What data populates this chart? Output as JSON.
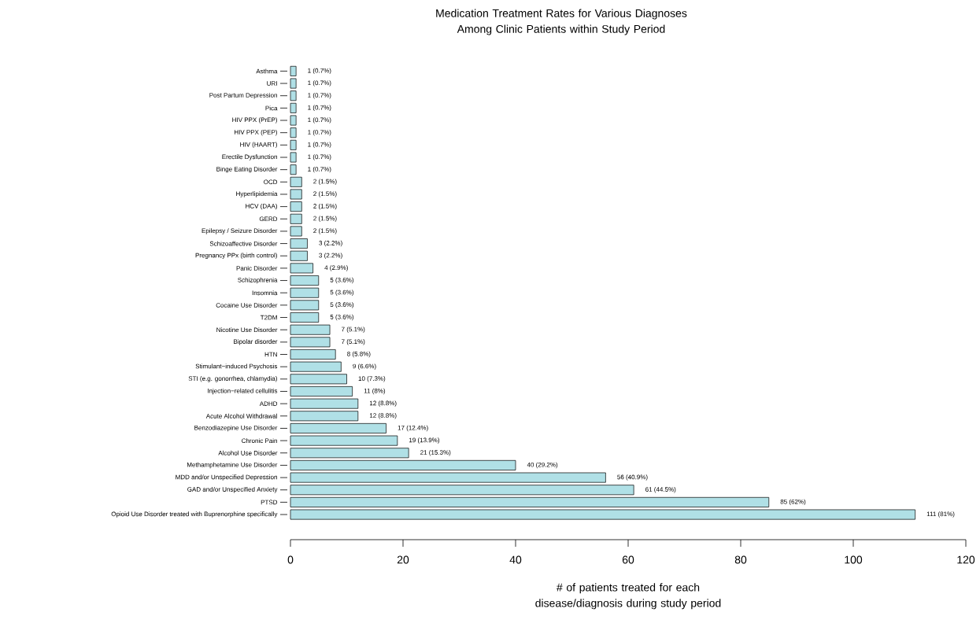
{
  "chart_data": {
    "type": "bar",
    "orientation": "horizontal",
    "title": "Medication Treatment Rates for Various Diagnoses Among Clinic Patients within Study Period",
    "xlabel": "# of patients treated for each disease/diagnosis during study period",
    "categories": [
      "Asthma",
      "URI",
      "Post Partum Depression",
      "Pica",
      "HIV PPX (PrEP)",
      "HIV PPX (PEP)",
      "HIV (HAART)",
      "Erectile Dysfunction",
      "Binge Eating Disorder",
      "OCD",
      "Hyperlipidemia",
      "HCV (DAA)",
      "GERD",
      "Epilepsy / Seizure Disorder",
      "Schizoaffective Disorder",
      "Pregnancy PPx (birth control)",
      "Panic Disorder",
      "Schizophrenia",
      "Insomnia",
      "Cocaine Use Disorder",
      "T2DM",
      "Nicotine Use Disorder",
      "Bipolar disorder",
      "HTN",
      "Stimulant−induced Psychosis",
      "STI (e.g. gonorrhea, chlamydia)",
      "Injection−related cellulitis",
      "ADHD",
      "Acute Alcohol Withdrawal",
      "Benzodiazepine Use Disorder",
      "Chronic Pain",
      "Alcohol Use Disorder",
      "Methamphetamine Use Disorder",
      "MDD and/or Unspecified Depression",
      "GAD and/or Unspecified Anxiety",
      "PTSD",
      "Opioid Use Disorder treated with Buprenorphine specifically"
    ],
    "values": [
      1,
      1,
      1,
      1,
      1,
      1,
      1,
      1,
      1,
      2,
      2,
      2,
      2,
      2,
      3,
      3,
      4,
      5,
      5,
      5,
      5,
      7,
      7,
      8,
      9,
      10,
      11,
      12,
      12,
      17,
      19,
      21,
      40,
      56,
      61,
      85,
      111
    ],
    "value_labels": [
      "1 (0.7%)",
      "1 (0.7%)",
      "1 (0.7%)",
      "1 (0.7%)",
      "1 (0.7%)",
      "1 (0.7%)",
      "1 (0.7%)",
      "1 (0.7%)",
      "1 (0.7%)",
      "2 (1.5%)",
      "2 (1.5%)",
      "2 (1.5%)",
      "2 (1.5%)",
      "2 (1.5%)",
      "3 (2.2%)",
      "3 (2.2%)",
      "4 (2.9%)",
      "5 (3.6%)",
      "5 (3.6%)",
      "5 (3.6%)",
      "5 (3.6%)",
      "7 (5.1%)",
      "7 (5.1%)",
      "8 (5.8%)",
      "9 (6.6%)",
      "10 (7.3%)",
      "11 (8%)",
      "12 (8.8%)",
      "12 (8.8%)",
      "17 (12.4%)",
      "19 (13.9%)",
      "21 (15.3%)",
      "40 (29.2%)",
      "56 (40.9%)",
      "61 (44.5%)",
      "85 (62%)",
      "111 (81%)"
    ],
    "color": "#b0e0e6",
    "xlim": [
      0,
      120
    ],
    "xticks": [
      0,
      20,
      40,
      60,
      80,
      100,
      120
    ]
  }
}
